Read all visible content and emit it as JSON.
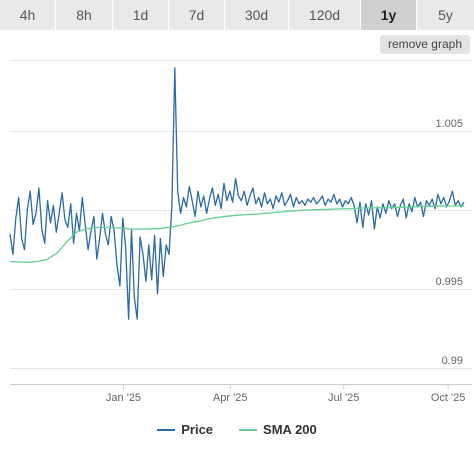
{
  "tabs": [
    {
      "label": "4h",
      "active": false
    },
    {
      "label": "8h",
      "active": false
    },
    {
      "label": "1d",
      "active": false
    },
    {
      "label": "7d",
      "active": false
    },
    {
      "label": "30d",
      "active": false
    },
    {
      "label": "120d",
      "active": false
    },
    {
      "label": "1y",
      "active": true
    },
    {
      "label": "5y",
      "active": false
    }
  ],
  "remove_graph_label": "remove graph",
  "colors": {
    "price": "#2b6aa6",
    "sma": "#63d08f",
    "grid": "#e6e6e6"
  },
  "chart_data": {
    "type": "line",
    "x_tick_labels": [
      "Jan '25",
      "Apr '25",
      "Jul '25",
      "Oct '25"
    ],
    "y_ticks": [
      0.99,
      0.995,
      1.005
    ],
    "y_tick_labels": [
      "0.99",
      "0.995",
      "1.005"
    ],
    "ylim": [
      0.989,
      1.0095
    ],
    "grid": true,
    "legend_position": "bottom",
    "series": [
      {
        "name": "Price",
        "color": "#2b6aa6",
        "values": [
          0.9985,
          0.9972,
          0.9995,
          1.0008,
          0.9982,
          0.9975,
          1.0001,
          1.0012,
          0.9991,
          0.9998,
          1.0014,
          0.9988,
          0.9979,
          1.0006,
          0.9992,
          1.0003,
          0.9986,
          0.9998,
          1.0011,
          0.9994,
          0.9989,
          1.0004,
          0.9979,
          0.9998,
          0.9987,
          1.0008,
          0.9991,
          0.9975,
          0.9987,
          0.9996,
          0.9969,
          0.9982,
          0.9998,
          0.9985,
          0.9978,
          0.9996,
          0.9987,
          0.9965,
          0.9952,
          0.9995,
          0.9976,
          0.9931,
          0.9988,
          0.9945,
          0.9931,
          0.9983,
          0.9972,
          0.9955,
          0.9978,
          0.9956,
          0.9984,
          0.9947,
          0.9982,
          0.9958,
          0.9978,
          0.9972,
          1.0003,
          1.009,
          1.0012,
          0.9998,
          1.0008,
          1.0002,
          1.0015,
          1.0006,
          0.9996,
          1.0012,
          1.0002,
          1.0009,
          0.9998,
          1.0007,
          1.0014,
          1.0003,
          1.001,
          1.0001,
          1.0017,
          1.0006,
          1.0012,
          1.0005,
          1.002,
          1.0009,
          1.0006,
          1.0012,
          1.0003,
          1.0009,
          1.0014,
          1.0004,
          1.0008,
          1.0002,
          1.0011,
          1.0004,
          1.0007,
          1.0001,
          1.0009,
          1.0005,
          1.0011,
          1.0003,
          1.0006,
          1.001,
          1.0002,
          1.0008,
          1.0004,
          1.0006,
          1.0003,
          1.0007,
          1.0005,
          1.0008,
          1.0004,
          1.0006,
          1.0009,
          1.0003,
          1.0007,
          1.0005,
          1.001,
          1.0004,
          1.0007,
          1.0002,
          1.0006,
          1.0004,
          1.0008,
          1.0003,
          0.9992,
          1.0005,
          0.9989,
          1.0004,
          0.9997,
          1.0006,
          0.9988,
          1.0002,
          0.9995,
          1.0004,
          0.9998,
          1.0006,
          1.0001,
          1.0004,
          0.9996,
          1.0003,
          1.0007,
          0.9995,
          1.0004,
          0.9999,
          1.0008,
          1.0002,
          1.0005,
          0.9996,
          1.0006,
          1.0003,
          1.0007,
          1.0001,
          1.001,
          1.0004,
          1.0008,
          1.0002,
          1.0006,
          1.0012,
          1.0003,
          1.0006,
          1.0002,
          1.0005
        ]
      },
      {
        "name": "SMA 200",
        "color": "#63d08f",
        "values": [
          0.99675,
          0.99672,
          0.9967,
          0.99675,
          0.9969,
          0.9973,
          0.998,
          0.9986,
          0.9988,
          0.9989,
          0.9989,
          0.9989,
          0.99885,
          0.9988,
          0.9988,
          0.99882,
          0.99885,
          0.99892,
          0.99905,
          0.9992,
          0.9993,
          0.99945,
          0.99955,
          0.99962,
          0.99968,
          0.99972,
          0.99975,
          0.9998,
          0.99985,
          0.9999,
          0.99996,
          1.0,
          1.00002,
          1.00004,
          1.00006,
          1.00008,
          1.0001,
          1.00012,
          1.00014,
          1.00015,
          1.00016,
          1.00018,
          1.0002,
          1.00022,
          1.00024,
          1.00025,
          1.00026,
          1.00026,
          1.00026
        ]
      }
    ]
  },
  "legend": [
    {
      "label": "Price",
      "color": "#2b6aa6"
    },
    {
      "label": "SMA 200",
      "color": "#63d08f"
    }
  ]
}
